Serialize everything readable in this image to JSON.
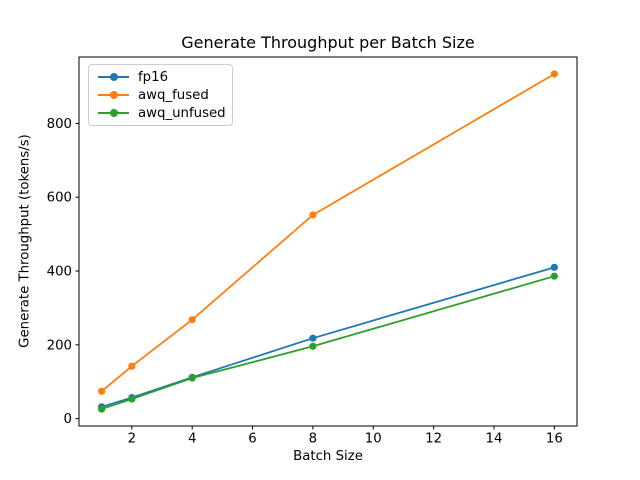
{
  "figure": {
    "background": "#ffffff"
  },
  "chart_data": {
    "type": "line",
    "title": "Generate Throughput per Batch Size",
    "xlabel": "Batch Size",
    "ylabel": "Generate Throughput (tokens/s)",
    "x": [
      1,
      2,
      4,
      8,
      16
    ],
    "series": [
      {
        "name": "fp16",
        "color": "#1f77b4",
        "values": [
          32,
          57,
          112,
          218,
          410
        ]
      },
      {
        "name": "awq_fused",
        "color": "#ff7f0e",
        "values": [
          74,
          142,
          268,
          552,
          934
        ]
      },
      {
        "name": "awq_unfused",
        "color": "#2ca02c",
        "values": [
          26,
          53,
          110,
          196,
          386
        ]
      }
    ],
    "xticks": [
      2,
      4,
      6,
      8,
      10,
      12,
      14,
      16
    ],
    "yticks": [
      0,
      200,
      400,
      600,
      800
    ],
    "xlim": [
      0.25,
      16.75
    ],
    "ylim": [
      -20,
      980
    ],
    "grid": false,
    "legend_position": "upper-left",
    "axis_color": "#000000",
    "tick_label_color": "#000000",
    "legend_border_color": "#cccccc",
    "marker": "circle",
    "marker_radius": 3.6,
    "line_width": 1.8
  }
}
